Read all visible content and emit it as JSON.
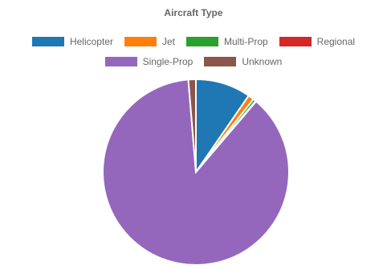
{
  "chart_data": {
    "type": "pie",
    "title": "Aircraft Type",
    "legend_position": "top",
    "categories": [
      "Helicopter",
      "Jet",
      "Multi-Prop",
      "Regional",
      "Single-Prop",
      "Unknown"
    ],
    "values": [
      9.6,
      1.0,
      0.5,
      0.1,
      87.5,
      1.3
    ],
    "colors": [
      "#1f77b4",
      "#ff7f0e",
      "#2ca02c",
      "#d62728",
      "#9467bd",
      "#8c564b"
    ]
  }
}
